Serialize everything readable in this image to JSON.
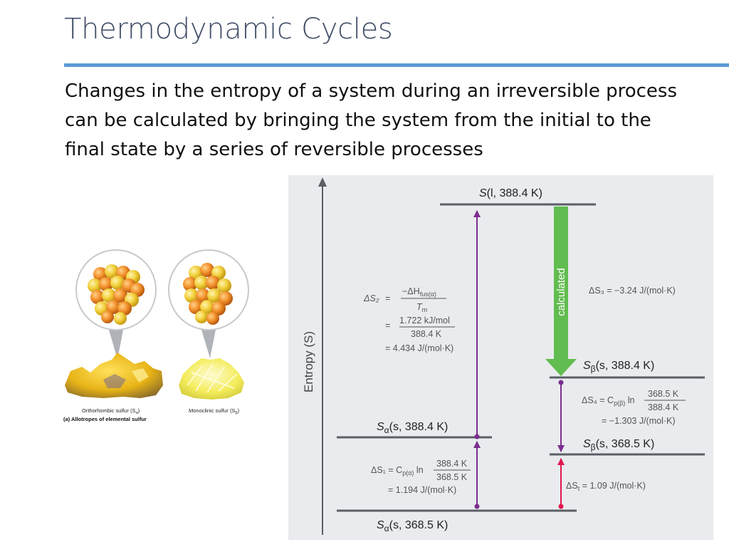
{
  "slide": {
    "title": "Thermodynamic Cycles",
    "body_lines": [
      "Changes in the entropy of a system during an irreversible process",
      "can be calculated by bringing the system from the initial to the",
      "final state by a series of reversible processes"
    ]
  },
  "figure_a": {
    "caption_left": "Orthorhombic sulfur (S",
    "caption_left_sub": "α",
    "caption_right": "Monoclinic sulfur (S",
    "caption_right_sub": "β",
    "caption_close": ")",
    "panel_label": "(a) Allotropes of elemental sulfur"
  },
  "diagram": {
    "axis_label": "Entropy (S)",
    "calc_label": "calculated",
    "levels": {
      "liquid": {
        "italic": "S",
        "rest": "(l, 388.4 K)"
      },
      "beta_388": {
        "italic": "S",
        "sub": "β",
        "rest": "(s, 388.4 K)"
      },
      "alpha_388": {
        "italic": "S",
        "sub": "α",
        "rest": "(s, 388.4 K)"
      },
      "beta_368": {
        "italic": "S",
        "sub": "β",
        "rest": "(s, 368.5 K)"
      },
      "alpha_368": {
        "italic": "S",
        "sub": "α",
        "rest": "(s, 368.5 K)"
      }
    },
    "ds2": {
      "lhs": "ΔS₂",
      "eq": "=",
      "num1": "−ΔH",
      "num1_sub": "fus(α)",
      "den1": "T",
      "den1_sub": "m",
      "num2": "1.722 kJ/mol",
      "den2": "388.4 K",
      "result": "= 4.434 J/(mol·K)"
    },
    "ds3": "ΔS₃ = −3.24 J/(mol·K)",
    "ds4": {
      "lhs": "ΔS₄ = C",
      "sub": "p(β)",
      "ln": "ln",
      "num": "368.5 K",
      "den": "388.4 K",
      "result": "= −1.303 J/(mol·K)"
    },
    "ds1": {
      "lhs": "ΔS₁ = C",
      "sub": "p(α)",
      "ln": "ln",
      "num": "388.4 K",
      "den": "368.5 K",
      "result": "= 1.194 J/(mol·K)"
    },
    "dst": "ΔS",
    "dst_sub": "t",
    "dst_rest": " = 1.09 J/(mol·K)",
    "colors": {
      "panel_bg": "#e9ebee",
      "line": "#5a5f66",
      "purple": "#7b2d8e",
      "red": "#e0174e",
      "green": "#61bd4f"
    }
  }
}
